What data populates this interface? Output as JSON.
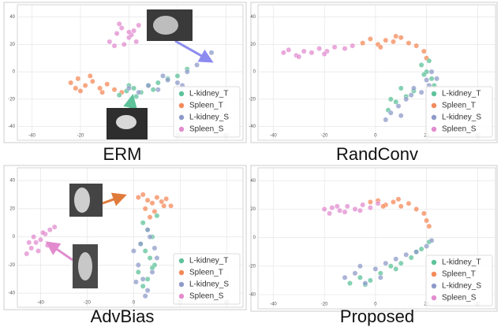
{
  "chart_data": [
    {
      "type": "scatter",
      "title": "ERM",
      "xlim": [
        -46,
        47
      ],
      "ylim": [
        -50,
        49
      ],
      "xticks": [
        -40,
        -20,
        0,
        20,
        40
      ],
      "yticks": [
        -40,
        -20,
        0,
        20,
        40
      ],
      "grid": true,
      "legend": "lower right",
      "series": [
        {
          "name": "L-kidney_T",
          "color": "#5ec29a",
          "x": [
            -4,
            -1,
            2,
            5,
            8,
            12,
            16,
            20,
            24,
            3,
            10,
            0
          ],
          "y": [
            -17,
            -14,
            -12,
            -15,
            -10,
            -8,
            -5,
            -3,
            2,
            -18,
            -13,
            -10
          ]
        },
        {
          "name": "Spleen_T",
          "color": "#f4895a",
          "x": [
            -24,
            -21,
            -18,
            -15,
            -12,
            -9,
            -6,
            -3,
            -20,
            -16,
            -11,
            -22
          ],
          "y": [
            -8,
            -5,
            -10,
            -7,
            -12,
            -9,
            -13,
            -15,
            -14,
            -3,
            -15,
            -12
          ]
        },
        {
          "name": "L-kidney_S",
          "color": "#8e9bc8",
          "x": [
            0,
            4,
            8,
            12,
            16,
            20,
            24,
            28,
            32,
            34,
            14,
            22
          ],
          "y": [
            -12,
            -15,
            -10,
            -13,
            -6,
            -8,
            0,
            5,
            10,
            14,
            -3,
            -10
          ]
        },
        {
          "name": "Spleen_S",
          "color": "#e28ccf",
          "x": [
            -8,
            -5,
            -3,
            0,
            2,
            4,
            -6,
            -2,
            1,
            3,
            -4,
            0
          ],
          "y": [
            22,
            28,
            32,
            25,
            30,
            34,
            19,
            20,
            27,
            22,
            35,
            29
          ]
        }
      ]
    },
    {
      "type": "scatter",
      "title": "RandConv",
      "xlim": [
        -46,
        47
      ],
      "ylim": [
        -50,
        49
      ],
      "xticks": [
        -40,
        -20,
        0,
        20,
        40
      ],
      "yticks": [
        -40,
        -20,
        0,
        20,
        40
      ],
      "grid": true,
      "legend": "lower right",
      "series": [
        {
          "name": "L-kidney_T",
          "color": "#5ec29a",
          "x": [
            18,
            20,
            22,
            23,
            15,
            12,
            8,
            5,
            19,
            21,
            10,
            6
          ],
          "y": [
            5,
            0,
            -5,
            -10,
            -14,
            -18,
            -22,
            -28,
            -2,
            8,
            -12,
            -20
          ]
        },
        {
          "name": "Spleen_T",
          "color": "#f4895a",
          "x": [
            -5,
            -2,
            1,
            4,
            7,
            10,
            13,
            16,
            19,
            20,
            2,
            8
          ],
          "y": [
            21,
            24,
            20,
            23,
            22,
            25,
            21,
            19,
            15,
            10,
            18,
            26
          ]
        },
        {
          "name": "L-kidney_S",
          "color": "#8e9bc8",
          "x": [
            22,
            24,
            21,
            18,
            15,
            12,
            9,
            6,
            4,
            10,
            20,
            14
          ],
          "y": [
            0,
            -5,
            -10,
            -15,
            -12,
            -20,
            -25,
            -30,
            -35,
            -32,
            -6,
            -17
          ]
        },
        {
          "name": "Spleen_S",
          "color": "#e28ccf",
          "x": [
            -36,
            -34,
            -31,
            -28,
            -25,
            -22,
            -19,
            -16,
            -12,
            -9,
            -30,
            -20
          ],
          "y": [
            14,
            16,
            12,
            15,
            14,
            17,
            15,
            18,
            17,
            19,
            11,
            13
          ]
        }
      ]
    },
    {
      "type": "scatter",
      "title": "AdvBias",
      "xlim": [
        -50,
        47
      ],
      "ylim": [
        -50,
        49
      ],
      "xticks": [
        -40,
        -20,
        0,
        20,
        40
      ],
      "yticks": [
        -40,
        -20,
        0,
        20,
        40
      ],
      "grid": true,
      "legend": "lower right",
      "series": [
        {
          "name": "L-kidney_T",
          "color": "#5ec29a",
          "x": [
            4,
            6,
            8,
            3,
            5,
            7,
            9,
            2,
            6,
            10,
            4,
            8
          ],
          "y": [
            10,
            5,
            0,
            -5,
            -10,
            -15,
            -20,
            -25,
            -30,
            15,
            -35,
            -22
          ]
        },
        {
          "name": "Spleen_T",
          "color": "#f4895a",
          "x": [
            2,
            4,
            6,
            8,
            10,
            12,
            14,
            16,
            5,
            9,
            13,
            7
          ],
          "y": [
            28,
            30,
            26,
            24,
            28,
            25,
            27,
            22,
            20,
            18,
            22,
            14
          ]
        },
        {
          "name": "L-kidney_S",
          "color": "#8e9bc8",
          "x": [
            0,
            2,
            4,
            6,
            8,
            10,
            3,
            7,
            5,
            9,
            1,
            6
          ],
          "y": [
            -10,
            -20,
            -30,
            -38,
            -25,
            -15,
            -5,
            0,
            -42,
            -8,
            -32,
            5
          ]
        },
        {
          "name": "Spleen_S",
          "color": "#e28ccf",
          "x": [
            -46,
            -44,
            -42,
            -40,
            -38,
            -36,
            -34,
            -41,
            -43,
            -37,
            -45,
            -39
          ],
          "y": [
            -12,
            -8,
            -4,
            -2,
            2,
            5,
            7,
            -10,
            0,
            -6,
            -4,
            3
          ]
        }
      ]
    },
    {
      "type": "scatter",
      "title": "Proposed",
      "xlim": [
        -46,
        47
      ],
      "ylim": [
        -50,
        49
      ],
      "xticks": [
        -40,
        -20,
        0,
        20,
        40
      ],
      "yticks": [
        -40,
        -20,
        0,
        20,
        40
      ],
      "grid": true,
      "legend": "lower right",
      "series": [
        {
          "name": "L-kidney_T",
          "color": "#5ec29a",
          "x": [
            -10,
            -6,
            -2,
            2,
            6,
            10,
            14,
            18,
            21,
            -4,
            8,
            16
          ],
          "y": [
            -32,
            -28,
            -30,
            -25,
            -20,
            -18,
            -14,
            -8,
            -3,
            -33,
            -22,
            -10
          ]
        },
        {
          "name": "Spleen_T",
          "color": "#f4895a",
          "x": [
            -2,
            1,
            4,
            7,
            10,
            13,
            16,
            19,
            20,
            21,
            3,
            9
          ],
          "y": [
            25,
            26,
            23,
            25,
            22,
            24,
            20,
            17,
            12,
            8,
            22,
            27
          ]
        },
        {
          "name": "L-kidney_S",
          "color": "#8e9bc8",
          "x": [
            -12,
            -8,
            -4,
            0,
            4,
            8,
            12,
            16,
            20,
            22,
            -6,
            2
          ],
          "y": [
            -28,
            -25,
            -32,
            -22,
            -18,
            -15,
            -12,
            -10,
            -6,
            -2,
            -20,
            -28
          ]
        },
        {
          "name": "Spleen_S",
          "color": "#e28ccf",
          "x": [
            -20,
            -17,
            -14,
            -11,
            -8,
            -5,
            -2,
            1,
            -18,
            -12,
            -6,
            -15
          ],
          "y": [
            20,
            21,
            19,
            22,
            20,
            23,
            21,
            24,
            17,
            18,
            19,
            22
          ]
        }
      ]
    }
  ]
}
